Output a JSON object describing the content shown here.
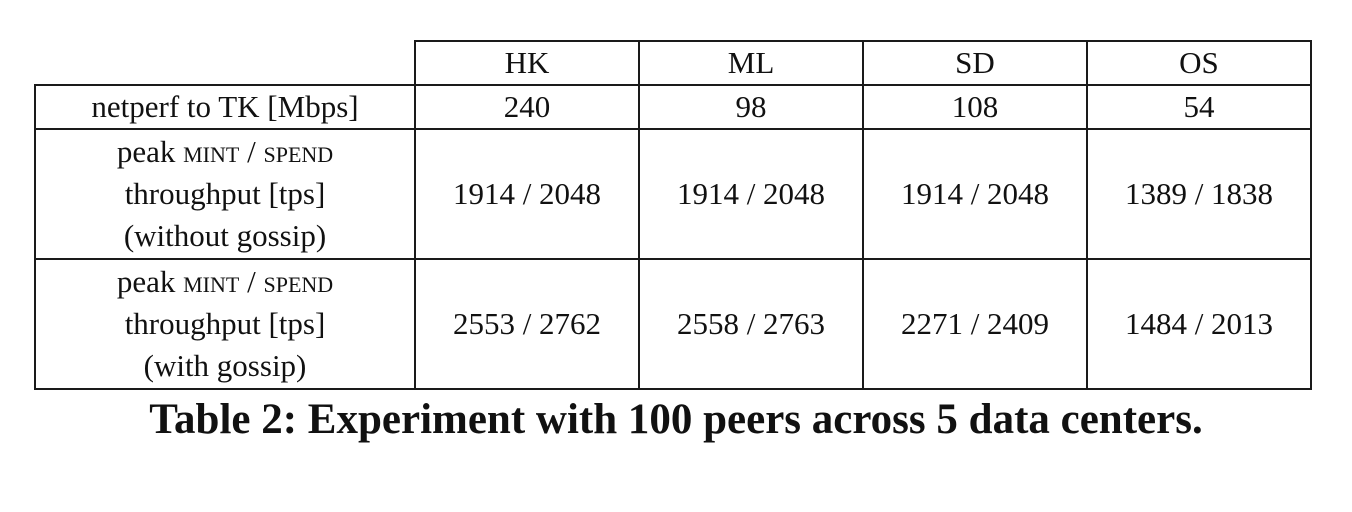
{
  "table": {
    "columns": [
      "HK",
      "ML",
      "SD",
      "OS"
    ],
    "rows": [
      {
        "label_lines": [
          "netperf to TK [Mbps]"
        ],
        "cells": [
          "240",
          "98",
          "108",
          "54"
        ]
      },
      {
        "label_peak": "peak",
        "label_mint": "mint",
        "label_sep": "/",
        "label_spend": "spend",
        "label_line2": "throughput [tps]",
        "label_line3": "(without gossip)",
        "cells": [
          "1914 / 2048",
          "1914 / 2048",
          "1914 / 2048",
          "1389 / 1838"
        ]
      },
      {
        "label_peak": "peak",
        "label_mint": "mint",
        "label_sep": "/",
        "label_spend": "spend",
        "label_line2": "throughput [tps]",
        "label_line3": "(with gossip)",
        "cells": [
          "2553 / 2762",
          "2558 / 2763",
          "2271 / 2409",
          "1484 / 2013"
        ]
      }
    ]
  },
  "caption": "Table 2: Experiment with 100 peers across 5 data centers."
}
